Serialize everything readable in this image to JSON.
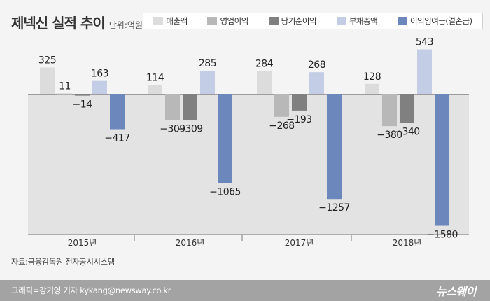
{
  "title": "제넥신 실적 추이",
  "unit_label": "단위:억원",
  "source": "자료:금융감독원 전자공시시스템",
  "credit": "그래픽=강기영 기자 kykang@newsway.co.kr",
  "brand": "뉴스웨이",
  "colors": {
    "sales": "#dcdcdc",
    "operating_profit": "#b8b8b8",
    "net_profit": "#808080",
    "total_liabilities": "#c3cde6",
    "retained_earnings": "#6b87bc",
    "negative_area": "#e3e3e3"
  },
  "chart_data": {
    "type": "bar",
    "categories": [
      "2015년",
      "2016년",
      "2017년",
      "2018년"
    ],
    "series": [
      {
        "name": "매출액",
        "values": [
          325,
          114,
          284,
          128
        ]
      },
      {
        "name": "영업이익",
        "values": [
          11,
          -309,
          -268,
          -380
        ]
      },
      {
        "name": "당기순이익",
        "values": [
          -14,
          -309,
          -193,
          -340
        ]
      },
      {
        "name": "부채총액",
        "values": [
          163,
          285,
          268,
          543
        ]
      },
      {
        "name": "이익잉여금(결손금)",
        "values": [
          -417,
          -1065,
          -1257,
          -1580
        ]
      }
    ],
    "data_labels": [
      [
        "325",
        "11",
        "-14",
        "163",
        "-417"
      ],
      [
        "114",
        "-309",
        "-309",
        "285",
        "-1065"
      ],
      [
        "284",
        "-268",
        "-193",
        "268",
        "-1257"
      ],
      [
        "128",
        "-380",
        "-340",
        "543",
        "-1580"
      ]
    ],
    "ylim": [
      -1650,
      600
    ],
    "grid": false,
    "legend_position": "top-right"
  }
}
